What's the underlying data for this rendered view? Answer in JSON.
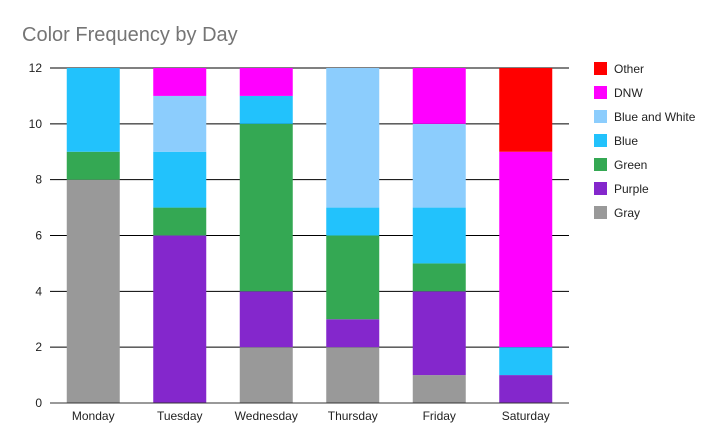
{
  "chart_data": {
    "type": "bar",
    "stacked": true,
    "title": "Color Frequency by Day",
    "xlabel": "",
    "ylabel": "",
    "categories": [
      "Monday",
      "Tuesday",
      "Wednesday",
      "Thursday",
      "Friday",
      "Saturday"
    ],
    "series": [
      {
        "name": "Gray",
        "color": "#999999",
        "values": [
          8,
          0,
          2,
          2,
          1,
          0
        ]
      },
      {
        "name": "Purple",
        "color": "#8427cc",
        "values": [
          0,
          6,
          2,
          1,
          3,
          1
        ]
      },
      {
        "name": "Green",
        "color": "#34a853",
        "values": [
          1,
          1,
          6,
          3,
          1,
          0
        ]
      },
      {
        "name": "Blue",
        "color": "#22c2fc",
        "values": [
          3,
          2,
          1,
          1,
          2,
          1
        ]
      },
      {
        "name": "Blue and White",
        "color": "#8ccdfd",
        "values": [
          0,
          2,
          0,
          5,
          3,
          0
        ]
      },
      {
        "name": "DNW",
        "color": "#ff00ff",
        "values": [
          0,
          1,
          1,
          0,
          2,
          7
        ]
      },
      {
        "name": "Other",
        "color": "#ff0000",
        "values": [
          0,
          0,
          0,
          0,
          0,
          3
        ]
      }
    ],
    "ylim": [
      0,
      12
    ],
    "yticks": [
      "0",
      "2",
      "4",
      "6",
      "8",
      "10",
      "12"
    ],
    "grid": true,
    "legend_position": "right"
  }
}
